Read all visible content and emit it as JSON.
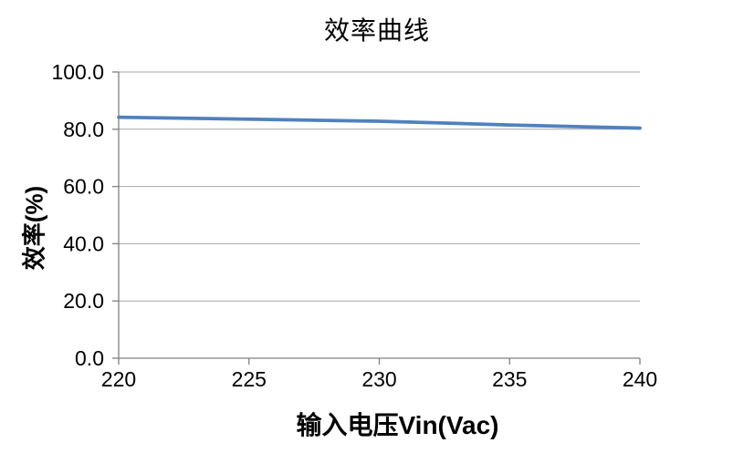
{
  "chart_data": {
    "type": "line",
    "title": "效率曲线",
    "xlabel": "输入电压Vin(Vac)",
    "ylabel": "效率(%)",
    "x": [
      220,
      225,
      230,
      235,
      240
    ],
    "series": [
      {
        "name": "效率",
        "values": [
          84.2,
          83.5,
          82.8,
          81.5,
          80.4
        ]
      }
    ],
    "xlim": [
      220,
      240
    ],
    "ylim": [
      0,
      100
    ],
    "xtick_labels": [
      "220",
      "225",
      "230",
      "235",
      "240"
    ],
    "ytick_values": [
      0,
      20,
      40,
      60,
      80,
      100
    ],
    "ytick_labels": [
      "0.0",
      "20.0",
      "40.0",
      "60.0",
      "80.0",
      "100.0"
    ],
    "grid": true,
    "legend": "none",
    "markers": "none",
    "colors": {
      "line": "#4f81bd",
      "gridline": "#a6a6a6",
      "axis": "#808080",
      "text": "#000000",
      "background": "#ffffff"
    }
  }
}
